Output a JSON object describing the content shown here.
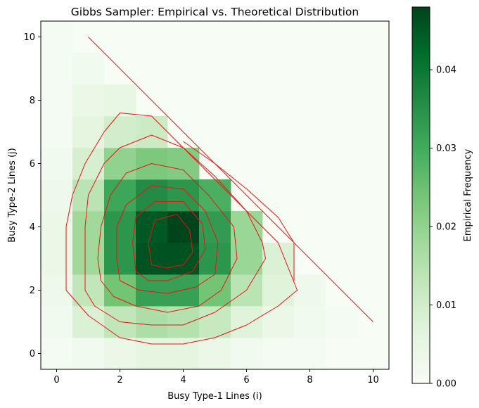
{
  "chart_data": {
    "type": "heatmap",
    "title": "Gibbs Sampler: Empirical vs. Theoretical Distribution",
    "xlabel": "Busy Type-1 Lines (i)",
    "ylabel": "Busy Type-2 Lines (j)",
    "xlim": [
      -0.5,
      10.5
    ],
    "ylim": [
      -0.5,
      10.5
    ],
    "x_ticks": [
      0,
      2,
      4,
      6,
      8,
      10
    ],
    "y_ticks": [
      0,
      2,
      4,
      6,
      8,
      10
    ],
    "grid": false,
    "colormap": "Greens",
    "colorbar": {
      "label": "Empirical Frequency",
      "min": 0.0,
      "max": 0.048,
      "ticks": [
        0.0,
        0.01,
        0.02,
        0.03,
        0.04
      ],
      "tick_labels": [
        "0.00",
        "0.01",
        "0.02",
        "0.03",
        "0.04"
      ]
    },
    "heatmap": {
      "x": [
        0,
        1,
        2,
        3,
        4,
        5,
        6,
        7,
        8,
        9,
        10
      ],
      "y": [
        0,
        1,
        2,
        3,
        4,
        5,
        6,
        7,
        8,
        9,
        10
      ],
      "z": [
        [
          0.001,
          0.002,
          0.004,
          0.006,
          0.006,
          0.004,
          0.002,
          0.001,
          0.001,
          0.0,
          0.0
        ],
        [
          0.002,
          0.008,
          0.013,
          0.016,
          0.015,
          0.012,
          0.007,
          0.004,
          0.002,
          0.001,
          null
        ],
        [
          0.003,
          0.013,
          0.024,
          0.032,
          0.032,
          0.024,
          0.014,
          0.007,
          0.003,
          null,
          null
        ],
        [
          0.004,
          0.018,
          0.034,
          0.046,
          0.046,
          0.034,
          0.019,
          0.008,
          null,
          null,
          null
        ],
        [
          0.004,
          0.018,
          0.034,
          0.045,
          0.048,
          0.033,
          0.019,
          null,
          null,
          null,
          null
        ],
        [
          0.003,
          0.014,
          0.031,
          0.036,
          0.034,
          0.029,
          null,
          null,
          null,
          null,
          null
        ],
        [
          0.002,
          0.009,
          0.02,
          0.023,
          0.022,
          null,
          null,
          null,
          null,
          null,
          null
        ],
        [
          0.001,
          0.006,
          0.01,
          0.011,
          null,
          null,
          null,
          null,
          null,
          null,
          null
        ],
        [
          0.001,
          0.004,
          0.005,
          null,
          null,
          null,
          null,
          null,
          null,
          null,
          null
        ],
        [
          0.001,
          0.002,
          null,
          null,
          null,
          null,
          null,
          null,
          null,
          null,
          null
        ],
        [
          0.001,
          null,
          null,
          null,
          null,
          null,
          null,
          null,
          null,
          null,
          null
        ]
      ]
    },
    "contour_color": "#ee1111",
    "theoretical_contours": [
      [
        [
          0.3,
          2.0
        ],
        [
          0.3,
          3.0
        ],
        [
          0.3,
          4.0
        ],
        [
          0.5,
          5.0
        ],
        [
          0.9,
          6.0
        ],
        [
          1.5,
          7.0
        ],
        [
          2.0,
          7.6
        ],
        [
          3.0,
          7.5
        ],
        [
          3.5,
          7.0
        ],
        [
          4.5,
          6.0
        ],
        [
          5.5,
          5.0
        ],
        [
          6.5,
          4.0
        ],
        [
          7.0,
          3.5
        ],
        [
          7.6,
          2.0
        ],
        [
          7.0,
          1.5
        ],
        [
          6.0,
          0.9
        ],
        [
          5.0,
          0.5
        ],
        [
          4.0,
          0.3
        ],
        [
          3.0,
          0.3
        ],
        [
          2.0,
          0.5
        ],
        [
          1.0,
          1.2
        ],
        [
          0.3,
          2.0
        ]
      ],
      [
        [
          0.9,
          2.0
        ],
        [
          0.9,
          3.0
        ],
        [
          0.9,
          4.0
        ],
        [
          1.0,
          5.0
        ],
        [
          1.5,
          6.0
        ],
        [
          2.0,
          6.5
        ],
        [
          3.0,
          6.9
        ],
        [
          4.0,
          6.5
        ],
        [
          5.0,
          5.6
        ],
        [
          6.0,
          4.5
        ],
        [
          6.5,
          3.5
        ],
        [
          6.6,
          3.0
        ],
        [
          6.0,
          2.0
        ],
        [
          5.0,
          1.3
        ],
        [
          4.0,
          0.9
        ],
        [
          3.0,
          0.9
        ],
        [
          2.0,
          1.0
        ],
        [
          1.2,
          1.5
        ],
        [
          0.9,
          2.0
        ]
      ],
      [
        [
          1.4,
          2.3
        ],
        [
          1.3,
          3.0
        ],
        [
          1.4,
          4.0
        ],
        [
          1.7,
          5.0
        ],
        [
          2.2,
          5.7
        ],
        [
          3.0,
          6.0
        ],
        [
          4.0,
          5.8
        ],
        [
          4.8,
          5.0
        ],
        [
          5.6,
          4.0
        ],
        [
          5.7,
          3.0
        ],
        [
          5.2,
          2.0
        ],
        [
          4.5,
          1.5
        ],
        [
          3.5,
          1.3
        ],
        [
          2.5,
          1.5
        ],
        [
          1.8,
          1.8
        ],
        [
          1.4,
          2.3
        ]
      ],
      [
        [
          2.0,
          2.3
        ],
        [
          1.9,
          3.0
        ],
        [
          1.9,
          4.0
        ],
        [
          2.2,
          4.7
        ],
        [
          3.0,
          5.3
        ],
        [
          4.0,
          5.2
        ],
        [
          4.7,
          4.5
        ],
        [
          5.1,
          3.5
        ],
        [
          5.0,
          2.5
        ],
        [
          4.4,
          2.1
        ],
        [
          3.5,
          1.9
        ],
        [
          2.6,
          2.0
        ],
        [
          2.0,
          2.3
        ]
      ],
      [
        [
          2.5,
          2.6
        ],
        [
          2.4,
          3.5
        ],
        [
          2.5,
          4.3
        ],
        [
          3.1,
          4.8
        ],
        [
          4.0,
          4.8
        ],
        [
          4.6,
          4.1
        ],
        [
          4.7,
          3.3
        ],
        [
          4.3,
          2.6
        ],
        [
          3.5,
          2.3
        ],
        [
          2.9,
          2.3
        ],
        [
          2.5,
          2.6
        ]
      ],
      [
        [
          3.0,
          2.8
        ],
        [
          2.9,
          3.5
        ],
        [
          3.1,
          4.2
        ],
        [
          3.8,
          4.4
        ],
        [
          4.2,
          3.9
        ],
        [
          4.3,
          3.2
        ],
        [
          4.0,
          2.8
        ],
        [
          3.5,
          2.7
        ],
        [
          3.0,
          2.8
        ]
      ],
      [
        [
          1.0,
          10.0
        ],
        [
          10.0,
          1.0
        ]
      ],
      [
        [
          4.0,
          6.7
        ],
        [
          5.0,
          6.0
        ],
        [
          6.0,
          5.2
        ],
        [
          7.0,
          4.3
        ],
        [
          7.5,
          3.5
        ],
        [
          7.5,
          2.3
        ]
      ]
    ]
  }
}
